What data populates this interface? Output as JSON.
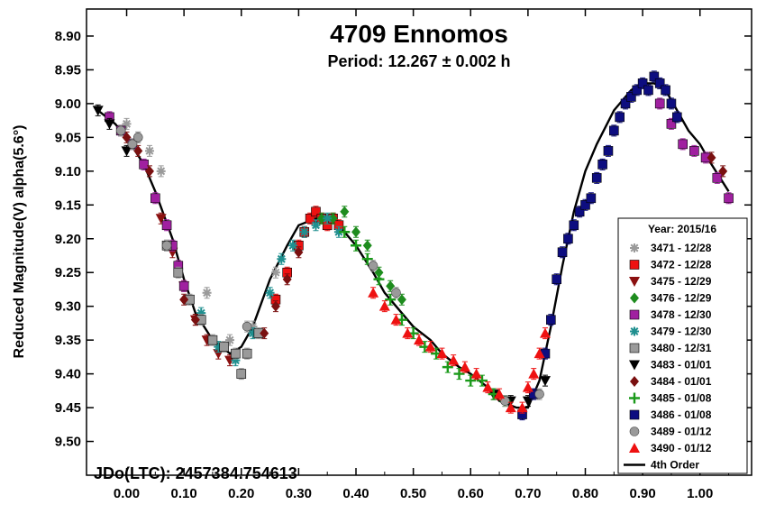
{
  "chart_data": {
    "type": "scatter",
    "title": "4709 Ennomos",
    "subtitle": "Period: 12.267 ± 0.002 h",
    "ylabel": "Reduced Magnitude(V) alpha(5.6°)",
    "xlabel": "",
    "annotation": "JDo(LTC): 2457384.754613",
    "xlim": [
      -0.07,
      1.09
    ],
    "ylim": [
      8.86,
      9.55
    ],
    "y_inverted": true,
    "grid": false,
    "legend_position": "bottom-right",
    "xticks": [
      "0.00",
      "0.10",
      "0.20",
      "0.30",
      "0.40",
      "0.50",
      "0.60",
      "0.70",
      "0.80",
      "0.90",
      "1.00"
    ],
    "xtick_values": [
      0,
      0.1,
      0.2,
      0.3,
      0.4,
      0.5,
      0.6,
      0.7,
      0.8,
      0.9,
      1.0
    ],
    "yticks": [
      "8.90",
      "8.95",
      "9.00",
      "9.05",
      "9.10",
      "9.15",
      "9.20",
      "9.25",
      "9.30",
      "9.35",
      "9.40",
      "9.45",
      "9.50"
    ],
    "ytick_values": [
      8.9,
      8.95,
      9.0,
      9.05,
      9.1,
      9.15,
      9.2,
      9.25,
      9.3,
      9.35,
      9.4,
      9.45,
      9.5
    ],
    "legend_title": "Year: 2015/16",
    "series": [
      {
        "name": "3471 - 12/28",
        "marker": "asterisk",
        "color": "#9a9a9a",
        "x": [
          0.0,
          0.02,
          0.04,
          0.06,
          0.14,
          0.18,
          0.22,
          0.26
        ],
        "y": [
          9.03,
          9.05,
          9.07,
          9.1,
          9.28,
          9.35,
          9.33,
          9.25
        ]
      },
      {
        "name": "3472 - 12/28",
        "marker": "square",
        "color": "#ee1111",
        "x": [
          0.26,
          0.28,
          0.3,
          0.31,
          0.32,
          0.33,
          0.34,
          0.35,
          0.36,
          0.37
        ],
        "y": [
          9.29,
          9.25,
          9.21,
          9.19,
          9.17,
          9.16,
          9.17,
          9.18,
          9.17,
          9.18
        ]
      },
      {
        "name": "3475 - 12/29",
        "marker": "triangle-down",
        "color": "#8b1010",
        "x": [
          0.06,
          0.08,
          0.1,
          0.12,
          0.14,
          0.16,
          0.18
        ],
        "y": [
          9.17,
          9.22,
          9.27,
          9.32,
          9.35,
          9.37,
          9.38
        ]
      },
      {
        "name": "3476 - 12/29",
        "marker": "diamond",
        "color": "#1e8c1e",
        "x": [
          0.34,
          0.36,
          0.38,
          0.4,
          0.42,
          0.44,
          0.46,
          0.48
        ],
        "y": [
          9.17,
          9.17,
          9.16,
          9.19,
          9.21,
          9.25,
          9.27,
          9.29
        ]
      },
      {
        "name": "3478 - 12/30",
        "marker": "square",
        "color": "#a020a0",
        "x": [
          -0.03,
          -0.01,
          0.01,
          0.03,
          0.05,
          0.07,
          0.08,
          0.09,
          0.1,
          0.93,
          0.95,
          0.97,
          0.99,
          1.01,
          1.03,
          1.05
        ],
        "y": [
          9.02,
          9.04,
          9.06,
          9.09,
          9.14,
          9.18,
          9.21,
          9.24,
          9.27,
          9.0,
          9.03,
          9.06,
          9.07,
          9.08,
          9.11,
          9.14
        ]
      },
      {
        "name": "3479 - 12/30",
        "marker": "asterisk",
        "color": "#1f8f8f",
        "x": [
          0.13,
          0.16,
          0.19,
          0.22,
          0.25,
          0.27,
          0.29,
          0.31,
          0.33,
          0.35,
          0.37
        ],
        "y": [
          9.31,
          9.36,
          9.38,
          9.34,
          9.28,
          9.23,
          9.21,
          9.19,
          9.18,
          9.17,
          9.19
        ]
      },
      {
        "name": "3480 - 12/31",
        "marker": "square",
        "color": "#9a9a9a",
        "x": [
          0.07,
          0.09,
          0.11,
          0.13,
          0.15,
          0.17,
          0.19,
          0.2,
          0.21,
          0.23
        ],
        "y": [
          9.21,
          9.25,
          9.29,
          9.32,
          9.35,
          9.36,
          9.37,
          9.4,
          9.37,
          9.34
        ]
      },
      {
        "name": "3483 - 01/01",
        "marker": "triangle-down",
        "color": "#000000",
        "x": [
          -0.05,
          -0.03,
          0.0,
          0.64,
          0.67,
          0.7,
          0.73
        ],
        "y": [
          9.01,
          9.03,
          9.07,
          9.43,
          9.44,
          9.44,
          9.41
        ]
      },
      {
        "name": "3484 - 01/01",
        "marker": "diamond",
        "color": "#7a1010",
        "x": [
          0.0,
          0.02,
          0.04,
          0.1,
          0.12,
          0.24,
          0.26,
          0.28,
          0.3,
          1.02,
          1.04
        ],
        "y": [
          9.05,
          9.07,
          9.1,
          9.29,
          9.32,
          9.34,
          9.3,
          9.26,
          9.22,
          9.08,
          9.1
        ]
      },
      {
        "name": "3485 - 01/08",
        "marker": "plus",
        "color": "#1a9a1a",
        "x": [
          0.38,
          0.4,
          0.42,
          0.44,
          0.46,
          0.48,
          0.5,
          0.52,
          0.54,
          0.56,
          0.58,
          0.6,
          0.62,
          0.64,
          0.66
        ],
        "y": [
          9.19,
          9.21,
          9.23,
          9.26,
          9.29,
          9.32,
          9.34,
          9.36,
          9.37,
          9.39,
          9.4,
          9.41,
          9.41,
          9.43,
          9.44
        ]
      },
      {
        "name": "3486 - 01/08",
        "marker": "square",
        "color": "#0d0d80",
        "x": [
          0.69,
          0.71,
          0.73,
          0.74,
          0.75,
          0.76,
          0.77,
          0.78,
          0.79,
          0.8,
          0.81,
          0.82,
          0.83,
          0.84,
          0.85,
          0.86,
          0.87,
          0.88,
          0.89,
          0.9,
          0.91,
          0.92,
          0.93,
          0.94,
          0.95,
          0.96
        ],
        "y": [
          9.46,
          9.43,
          9.37,
          9.32,
          9.26,
          9.22,
          9.2,
          9.18,
          9.16,
          9.15,
          9.14,
          9.11,
          9.09,
          9.07,
          9.04,
          9.02,
          9.0,
          8.99,
          8.98,
          8.97,
          8.98,
          8.96,
          8.97,
          8.98,
          9.0,
          9.02
        ]
      },
      {
        "name": "3489 - 01/12",
        "marker": "circle",
        "color": "#9a9a9a",
        "x": [
          -0.01,
          0.01,
          0.02,
          0.07,
          0.21,
          0.43,
          0.47,
          0.66,
          0.72
        ],
        "y": [
          9.04,
          9.06,
          9.05,
          9.21,
          9.33,
          9.24,
          9.28,
          9.44,
          9.43
        ]
      },
      {
        "name": "3490 - 01/12",
        "marker": "triangle-up",
        "color": "#ee1111",
        "x": [
          0.43,
          0.45,
          0.47,
          0.49,
          0.51,
          0.53,
          0.55,
          0.57,
          0.59,
          0.61,
          0.63,
          0.65,
          0.67,
          0.69,
          0.7,
          0.71,
          0.72,
          0.73
        ],
        "y": [
          9.28,
          9.3,
          9.32,
          9.34,
          9.35,
          9.36,
          9.37,
          9.38,
          9.39,
          9.4,
          9.42,
          9.43,
          9.45,
          9.45,
          9.42,
          9.4,
          9.37,
          9.34
        ]
      }
    ],
    "fit": {
      "name": "4th Order",
      "color": "#000000",
      "x": [
        -0.05,
        -0.02,
        0.0,
        0.03,
        0.05,
        0.08,
        0.1,
        0.12,
        0.15,
        0.18,
        0.2,
        0.22,
        0.25,
        0.28,
        0.3,
        0.33,
        0.35,
        0.37,
        0.4,
        0.43,
        0.45,
        0.48,
        0.5,
        0.53,
        0.55,
        0.58,
        0.6,
        0.63,
        0.65,
        0.68,
        0.7,
        0.72,
        0.74,
        0.76,
        0.78,
        0.8,
        0.82,
        0.85,
        0.88,
        0.9,
        0.92,
        0.94,
        0.96,
        0.98,
        1.0,
        1.02,
        1.05
      ],
      "y": [
        9.01,
        9.03,
        9.05,
        9.09,
        9.13,
        9.2,
        9.26,
        9.31,
        9.35,
        9.37,
        9.36,
        9.33,
        9.26,
        9.21,
        9.18,
        9.17,
        9.17,
        9.18,
        9.21,
        9.25,
        9.28,
        9.31,
        9.33,
        9.35,
        9.37,
        9.39,
        9.4,
        9.42,
        9.44,
        9.45,
        9.45,
        9.41,
        9.33,
        9.24,
        9.16,
        9.1,
        9.06,
        9.01,
        8.98,
        8.97,
        8.97,
        8.98,
        9.01,
        9.04,
        9.06,
        9.09,
        9.13
      ]
    }
  }
}
